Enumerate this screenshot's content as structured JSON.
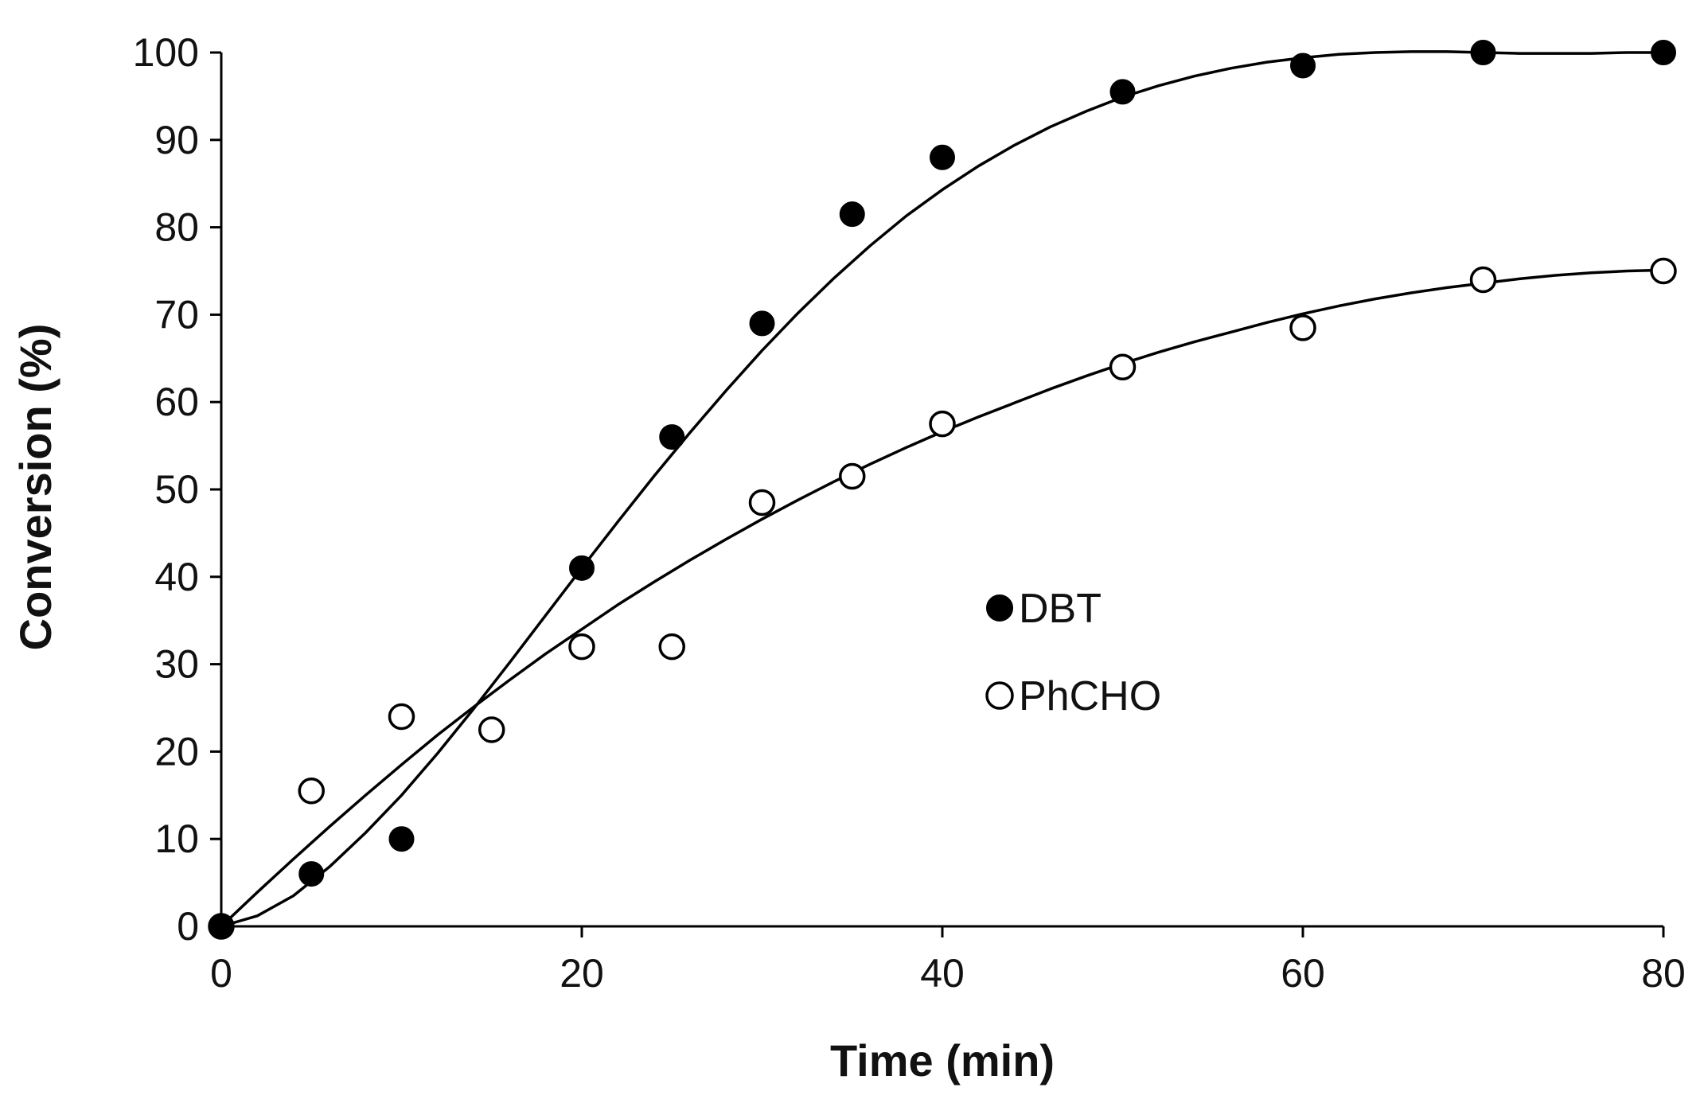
{
  "chart_data": {
    "type": "scatter",
    "title": "",
    "xlabel": "Time (min)",
    "ylabel": "Conversion (%)",
    "xlim": [
      0,
      80
    ],
    "ylim": [
      0,
      100
    ],
    "xticks": [
      0,
      20,
      40,
      60,
      80
    ],
    "yticks": [
      0,
      10,
      20,
      30,
      40,
      50,
      60,
      70,
      80,
      90,
      100
    ],
    "grid": false,
    "legend_position": "center-right",
    "series": [
      {
        "name": "DBT",
        "marker": "filled-circle",
        "color": "#000000",
        "x": [
          0,
          5,
          10,
          20,
          25,
          30,
          35,
          40,
          50,
          60,
          70,
          80
        ],
        "y": [
          0,
          6,
          10,
          41,
          56,
          69,
          81.5,
          88,
          95.5,
          98.5,
          100,
          100
        ],
        "fit": {
          "x": [
            0,
            2,
            4,
            6,
            8,
            10,
            12,
            14,
            16,
            18,
            20,
            22,
            24,
            26,
            28,
            30,
            32,
            34,
            36,
            38,
            40,
            42,
            44,
            46,
            48,
            50,
            52,
            54,
            56,
            58,
            60,
            62,
            64,
            66,
            68,
            70,
            72,
            74,
            76,
            78,
            80
          ],
          "y": [
            0,
            1.2,
            3.5,
            6.8,
            10.7,
            15,
            19.8,
            24.9,
            30.2,
            35.6,
            41,
            46.3,
            51.5,
            56.5,
            61.3,
            65.9,
            70.2,
            74.2,
            77.9,
            81.3,
            84.3,
            87,
            89.4,
            91.5,
            93.3,
            94.9,
            96.2,
            97.3,
            98.2,
            98.9,
            99.4,
            99.8,
            100,
            100.1,
            100.1,
            100,
            99.9,
            99.9,
            99.9,
            100,
            100
          ]
        }
      },
      {
        "name": "PhCHO",
        "marker": "open-circle",
        "color": "#000000",
        "x": [
          0,
          5,
          10,
          15,
          20,
          25,
          30,
          35,
          40,
          50,
          60,
          70,
          80
        ],
        "y": [
          0,
          15.5,
          24,
          22.5,
          32,
          32,
          48.5,
          51.5,
          57.5,
          64,
          68.5,
          74,
          75
        ],
        "fit": {
          "x": [
            0,
            2,
            4,
            6,
            8,
            10,
            12,
            14,
            16,
            18,
            20,
            22,
            24,
            26,
            28,
            30,
            32,
            34,
            36,
            38,
            40,
            42,
            44,
            46,
            48,
            50,
            52,
            54,
            56,
            58,
            60,
            62,
            64,
            66,
            68,
            70,
            72,
            74,
            76,
            78,
            80
          ],
          "y": [
            0,
            3.9,
            7.7,
            11.4,
            15,
            18.5,
            21.9,
            25.1,
            28.2,
            31.2,
            34,
            36.8,
            39.4,
            41.9,
            44.3,
            46.6,
            48.8,
            50.9,
            52.9,
            54.8,
            56.6,
            58.3,
            59.9,
            61.5,
            63,
            64.4,
            65.7,
            66.9,
            68,
            69.1,
            70.1,
            71,
            71.8,
            72.5,
            73.1,
            73.6,
            74.1,
            74.5,
            74.8,
            75,
            75.1
          ]
        }
      }
    ]
  }
}
